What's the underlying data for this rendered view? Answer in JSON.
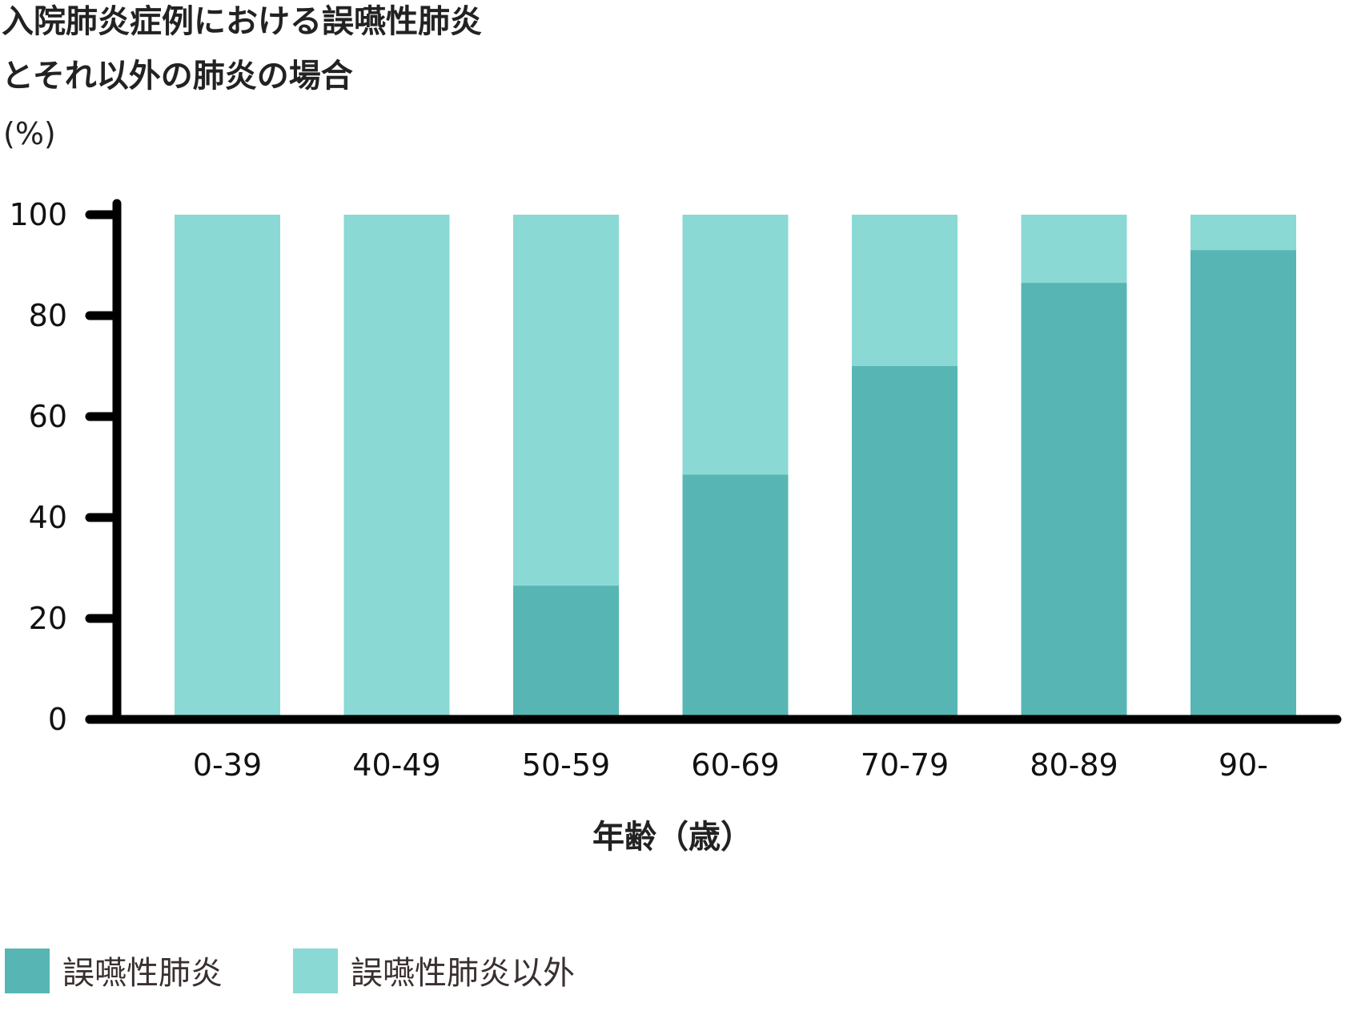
{
  "chart_data": {
    "type": "bar",
    "stacked": true,
    "title_lines": [
      "入院肺炎症例における誤嚥性肺炎",
      "とそれ以外の肺炎の場合"
    ],
    "ylabel_unit": "(%)",
    "xlabel": "年齢（歳）",
    "categories": [
      "0-39",
      "40-49",
      "50-59",
      "60-69",
      "70-79",
      "80-89",
      "90-"
    ],
    "series": [
      {
        "name": "誤嚥性肺炎",
        "color": "#57b6b4",
        "values": [
          0,
          0,
          26.5,
          48.5,
          70,
          86.5,
          93
        ]
      },
      {
        "name": "誤嚥性肺炎以外",
        "color": "#8ad9d5",
        "values": [
          100,
          100,
          73.5,
          51.5,
          30,
          13.5,
          7
        ]
      }
    ],
    "ylim": [
      0,
      100
    ],
    "yticks": [
      0,
      20,
      40,
      60,
      80,
      100
    ],
    "grid": false,
    "legend_position": "bottom-left",
    "axis_color": "#000000"
  }
}
